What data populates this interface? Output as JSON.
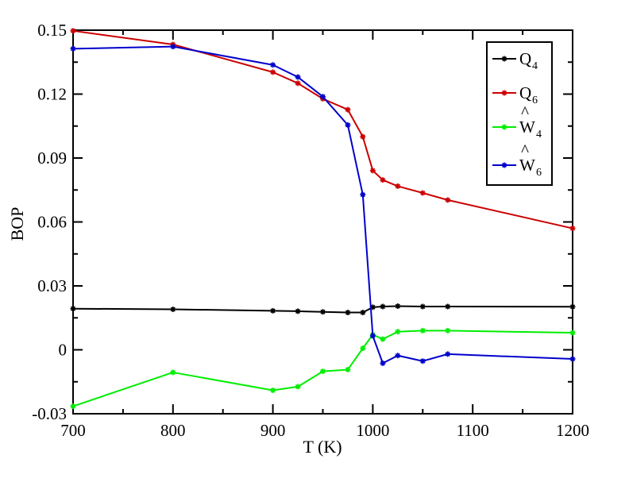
{
  "chart_data": {
    "type": "line",
    "xlabel": "T (K)",
    "ylabel": "BOP",
    "xlim": [
      700,
      1200
    ],
    "ylim": [
      -0.03,
      0.15
    ],
    "xticks": [
      "700",
      "800",
      "900",
      "1000",
      "1100",
      "1200"
    ],
    "yticks": [
      "-0.03",
      "0",
      "0.03",
      "0.06",
      "0.09",
      "0.12",
      "0.15"
    ],
    "grid": false,
    "legend_position": "top-right",
    "series": [
      {
        "name": "Q4",
        "base": "Q",
        "subscript": "4",
        "hat": "",
        "color": "#000000",
        "x": [
          700,
          800,
          900,
          925,
          950,
          975,
          990,
          1000,
          1010,
          1025,
          1050,
          1075,
          1200
        ],
        "y": [
          0.0193,
          0.019,
          0.0183,
          0.0181,
          0.0178,
          0.0175,
          0.0175,
          0.02,
          0.0203,
          0.0205,
          0.0203,
          0.0203,
          0.0202
        ]
      },
      {
        "name": "Q6",
        "base": "Q",
        "subscript": "6",
        "hat": "",
        "color": "#cc0000",
        "x": [
          700,
          800,
          900,
          925,
          950,
          975,
          990,
          1000,
          1010,
          1025,
          1050,
          1075,
          1200
        ],
        "y": [
          0.1497,
          0.1433,
          0.1303,
          0.1251,
          0.1178,
          0.1127,
          0.1,
          0.0841,
          0.0797,
          0.0768,
          0.0736,
          0.0703,
          0.057
        ]
      },
      {
        "name": "W4",
        "base": "W",
        "subscript": "4",
        "hat": "^",
        "color": "#00ee00",
        "x": [
          700,
          800,
          900,
          925,
          950,
          975,
          990,
          1000,
          1010,
          1025,
          1050,
          1075,
          1200
        ],
        "y": [
          -0.0265,
          -0.0106,
          -0.019,
          -0.0173,
          -0.0101,
          -0.0093,
          0.0007,
          0.0071,
          0.005,
          0.0085,
          0.009,
          0.009,
          0.008
        ]
      },
      {
        "name": "W6",
        "base": "W",
        "subscript": "6",
        "hat": "^",
        "color": "#0000cc",
        "x": [
          700,
          800,
          900,
          925,
          950,
          975,
          990,
          1000,
          1010,
          1025,
          1050,
          1075,
          1200
        ],
        "y": [
          0.1413,
          0.1423,
          0.1337,
          0.128,
          0.1188,
          0.1055,
          0.0728,
          0.0065,
          -0.0063,
          -0.0027,
          -0.0053,
          -0.002,
          -0.0043
        ]
      }
    ]
  }
}
